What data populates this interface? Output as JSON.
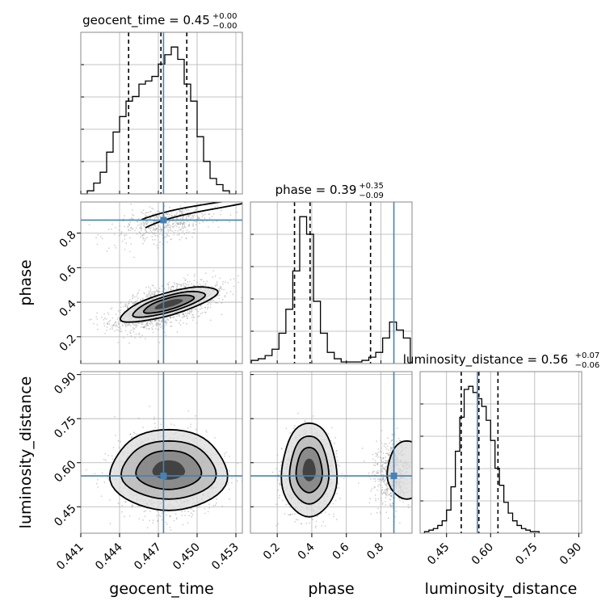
{
  "chart_data": {
    "type": "corner",
    "parameters": [
      "geocent_time",
      "phase",
      "luminosity_distance"
    ],
    "truth": {
      "geocent_time": 0.4474,
      "phase": 0.875,
      "luminosity_distance": 0.555
    },
    "truth_color": "#4682b4",
    "titles": [
      {
        "param": "geocent_time",
        "main": "geocent_time = 0.45",
        "sup": "+0.00",
        "sub": "−0.00"
      },
      {
        "param": "phase",
        "main": "phase = 0.39",
        "sup": "+0.35",
        "sub": "−0.09"
      },
      {
        "param": "luminosity_distance",
        "main": "luminosity_distance = 0.56",
        "sup": "+0.07",
        "sub": "−0.06"
      }
    ],
    "axes": {
      "geocent_time": {
        "range": [
          0.441,
          0.4535
        ],
        "ticks": [
          0.441,
          0.444,
          0.447,
          0.45,
          0.453
        ],
        "tick_labels": [
          "0.441",
          "0.444",
          "0.447",
          "0.450",
          "0.453"
        ],
        "label": "geocent_time"
      },
      "phase": {
        "range": [
          0.045,
          0.98
        ],
        "ticks": [
          0.2,
          0.4,
          0.6,
          0.8
        ],
        "tick_labels": [
          "0.2",
          "0.4",
          "0.6",
          "0.8"
        ],
        "label": "phase"
      },
      "luminosity_distance": {
        "range": [
          0.36,
          0.91
        ],
        "ticks": [
          0.45,
          0.6,
          0.75,
          0.9
        ],
        "tick_labels": [
          "0.45",
          "0.60",
          "0.75",
          "0.90"
        ],
        "label": "luminosity_distance"
      }
    },
    "histograms": {
      "geocent_time": {
        "edges": [
          0.441,
          0.4415,
          0.442,
          0.4425,
          0.443,
          0.4435,
          0.444,
          0.4445,
          0.445,
          0.4455,
          0.446,
          0.4465,
          0.447,
          0.4475,
          0.448,
          0.4485,
          0.449,
          0.4495,
          0.45,
          0.4505,
          0.451,
          0.4515,
          0.452,
          0.4525,
          0.453
        ],
        "counts": [
          0.0,
          0.02,
          0.07,
          0.14,
          0.27,
          0.4,
          0.5,
          0.6,
          0.63,
          0.71,
          0.73,
          0.76,
          0.84,
          0.9,
          0.95,
          0.87,
          0.71,
          0.6,
          0.37,
          0.21,
          0.1,
          0.06,
          0.02,
          0.0
        ],
        "quantiles": [
          0.4447,
          0.4472,
          0.4492
        ]
      },
      "phase": {
        "edges": [
          0.05,
          0.09,
          0.13,
          0.17,
          0.21,
          0.25,
          0.29,
          0.33,
          0.37,
          0.41,
          0.45,
          0.49,
          0.53,
          0.57,
          0.61,
          0.65,
          0.69,
          0.73,
          0.77,
          0.81,
          0.85,
          0.89,
          0.93,
          0.97
        ],
        "counts": [
          0.02,
          0.03,
          0.05,
          0.09,
          0.19,
          0.34,
          0.58,
          0.92,
          0.81,
          0.39,
          0.19,
          0.07,
          0.03,
          0.01,
          0.01,
          0.01,
          0.02,
          0.04,
          0.07,
          0.16,
          0.26,
          0.21,
          0.16
        ],
        "quantiles": [
          0.3,
          0.39,
          0.74
        ]
      },
      "luminosity_distance": {
        "edges": [
          0.375,
          0.39,
          0.405,
          0.42,
          0.435,
          0.45,
          0.465,
          0.48,
          0.495,
          0.51,
          0.525,
          0.54,
          0.555,
          0.57,
          0.585,
          0.6,
          0.615,
          0.63,
          0.645,
          0.66,
          0.675,
          0.69,
          0.705,
          0.72,
          0.735,
          0.75,
          0.765
        ],
        "counts": [
          0.01,
          0.02,
          0.03,
          0.05,
          0.08,
          0.15,
          0.3,
          0.53,
          0.75,
          0.93,
          0.95,
          0.91,
          0.87,
          0.82,
          0.73,
          0.6,
          0.42,
          0.31,
          0.2,
          0.13,
          0.08,
          0.05,
          0.03,
          0.02,
          0.01,
          0.01
        ],
        "quantiles": [
          0.5,
          0.56,
          0.625
        ]
      }
    }
  }
}
